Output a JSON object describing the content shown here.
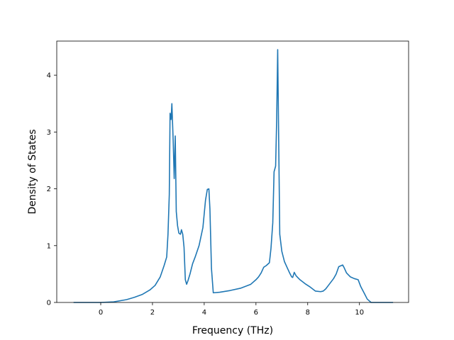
{
  "chart_data": {
    "type": "line",
    "title": "",
    "xlabel": "Frequency (THz)",
    "ylabel": "Density of States",
    "xlim": [
      -1.7,
      11.9
    ],
    "ylim": [
      0,
      4.6
    ],
    "xticks": [
      0,
      2,
      4,
      6,
      8,
      10
    ],
    "yticks": [
      0,
      1,
      2,
      3,
      4
    ],
    "grid": false,
    "legend": "none",
    "series": [
      {
        "color": "#1f77b4",
        "x": [
          -1.05,
          -0.5,
          0.0,
          0.5,
          1.0,
          1.3,
          1.6,
          1.9,
          2.1,
          2.3,
          2.45,
          2.55,
          2.6,
          2.65,
          2.68,
          2.72,
          2.75,
          2.8,
          2.84,
          2.88,
          2.92,
          2.97,
          3.02,
          3.08,
          3.12,
          3.17,
          3.22,
          3.27,
          3.32,
          3.37,
          3.45,
          3.55,
          3.65,
          3.8,
          3.95,
          4.05,
          4.12,
          4.18,
          4.22,
          4.28,
          4.35,
          4.6,
          5.0,
          5.4,
          5.8,
          6.0,
          6.1,
          6.2,
          6.3,
          6.4,
          6.52,
          6.58,
          6.65,
          6.7,
          6.76,
          6.8,
          6.84,
          6.88,
          6.92,
          7.0,
          7.1,
          7.2,
          7.3,
          7.38,
          7.42,
          7.48,
          7.55,
          7.7,
          7.9,
          8.1,
          8.3,
          8.5,
          8.6,
          8.7,
          8.8,
          9.0,
          9.1,
          9.2,
          9.3,
          9.35,
          9.4,
          9.5,
          9.65,
          9.8,
          9.95,
          10.05,
          10.2,
          10.3,
          10.45,
          11.0,
          11.3
        ],
        "y": [
          0.0,
          0.0,
          0.0,
          0.01,
          0.05,
          0.09,
          0.14,
          0.22,
          0.3,
          0.45,
          0.65,
          0.8,
          1.2,
          1.9,
          3.33,
          3.22,
          3.5,
          2.85,
          2.18,
          2.93,
          1.6,
          1.35,
          1.22,
          1.2,
          1.28,
          1.2,
          0.97,
          0.4,
          0.32,
          0.38,
          0.5,
          0.68,
          0.8,
          1.0,
          1.32,
          1.8,
          1.99,
          2.0,
          1.65,
          0.6,
          0.17,
          0.18,
          0.21,
          0.25,
          0.32,
          0.4,
          0.45,
          0.52,
          0.62,
          0.65,
          0.7,
          0.95,
          1.4,
          2.3,
          2.4,
          3.2,
          4.45,
          2.8,
          1.2,
          0.9,
          0.72,
          0.62,
          0.52,
          0.45,
          0.44,
          0.53,
          0.47,
          0.4,
          0.33,
          0.27,
          0.2,
          0.19,
          0.2,
          0.24,
          0.3,
          0.42,
          0.5,
          0.63,
          0.65,
          0.66,
          0.62,
          0.52,
          0.45,
          0.42,
          0.4,
          0.28,
          0.15,
          0.06,
          0.0,
          0.0,
          0.0
        ]
      }
    ]
  }
}
